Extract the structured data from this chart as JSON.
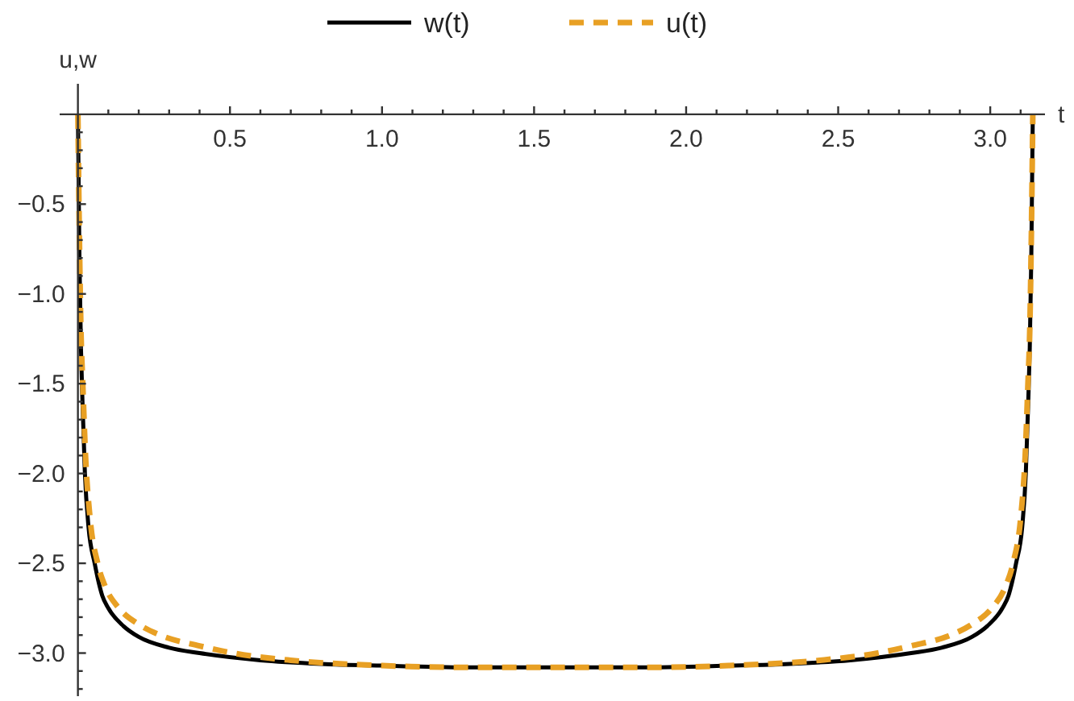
{
  "chart_data": {
    "type": "line",
    "xlabel": "t",
    "ylabel": "u,w",
    "legend": "top",
    "xlim": [
      -0.06,
      3.18
    ],
    "ylim": [
      -3.24,
      0.17
    ],
    "xticks": [
      {
        "value": 0.1,
        "label": null
      },
      {
        "value": 0.2,
        "label": null
      },
      {
        "value": 0.3,
        "label": null
      },
      {
        "value": 0.4,
        "label": null
      },
      0.5,
      {
        "value": 0.6,
        "label": null
      },
      {
        "value": 0.7,
        "label": null
      },
      {
        "value": 0.8,
        "label": null
      },
      {
        "value": 0.9,
        "label": null
      },
      {
        "value": 1,
        "label": "1.0"
      },
      {
        "value": 1.1,
        "label": null
      },
      {
        "value": 1.2,
        "label": null
      },
      {
        "value": 1.3,
        "label": null
      },
      {
        "value": 1.4,
        "label": null
      },
      1.5,
      {
        "value": 1.6,
        "label": null
      },
      {
        "value": 1.7,
        "label": null
      },
      {
        "value": 1.8,
        "label": null
      },
      {
        "value": 1.9,
        "label": null
      },
      {
        "value": 2,
        "label": "2.0"
      },
      {
        "value": 2.1,
        "label": null
      },
      {
        "value": 2.2,
        "label": null
      },
      {
        "value": 2.3,
        "label": null
      },
      {
        "value": 2.4,
        "label": null
      },
      2.5,
      {
        "value": 2.6,
        "label": null
      },
      {
        "value": 2.7,
        "label": null
      },
      {
        "value": 2.8,
        "label": null
      },
      {
        "value": 2.9,
        "label": null
      },
      {
        "value": 3,
        "label": "3.0"
      },
      {
        "value": 3.1,
        "label": null
      }
    ],
    "yticks": [
      {
        "value": -0.1,
        "label": null
      },
      {
        "value": -0.2,
        "label": null
      },
      {
        "value": -0.3,
        "label": null
      },
      {
        "value": -0.4,
        "label": null
      },
      {
        "value": -0.5,
        "label": "−0.5"
      },
      {
        "value": -0.6,
        "label": null
      },
      {
        "value": -0.7,
        "label": null
      },
      {
        "value": -0.8,
        "label": null
      },
      {
        "value": -0.9,
        "label": null
      },
      {
        "value": -1,
        "label": "−1.0"
      },
      {
        "value": -1.1,
        "label": null
      },
      {
        "value": -1.2,
        "label": null
      },
      {
        "value": -1.3,
        "label": null
      },
      {
        "value": -1.4,
        "label": null
      },
      {
        "value": -1.5,
        "label": "−1.5"
      },
      {
        "value": -1.6,
        "label": null
      },
      {
        "value": -1.7,
        "label": null
      },
      {
        "value": -1.8,
        "label": null
      },
      {
        "value": -1.9,
        "label": null
      },
      {
        "value": -2,
        "label": "−2.0"
      },
      {
        "value": -2.1,
        "label": null
      },
      {
        "value": -2.2,
        "label": null
      },
      {
        "value": -2.3,
        "label": null
      },
      {
        "value": -2.4,
        "label": null
      },
      {
        "value": -2.5,
        "label": "−2.5"
      },
      {
        "value": -2.6,
        "label": null
      },
      {
        "value": -2.7,
        "label": null
      },
      {
        "value": -2.8,
        "label": null
      },
      {
        "value": -2.9,
        "label": null
      },
      {
        "value": -3,
        "label": "−3.0"
      },
      {
        "value": -3.1,
        "label": null
      },
      {
        "value": -3.2,
        "label": null
      }
    ],
    "series": [
      {
        "name": "w(t)",
        "color": "#000000",
        "line_style": "solid",
        "x": [
          0,
          0.005,
          0.01,
          0.015,
          0.023,
          0.035,
          0.055,
          0.08,
          0.1,
          0.15,
          0.2,
          0.3,
          0.4,
          0.6,
          0.8,
          1.0,
          1.3,
          1.57,
          1.84,
          2.14,
          2.34,
          2.54,
          2.74,
          2.84,
          2.94,
          2.99,
          3.04,
          3.06,
          3.085,
          3.105,
          3.117,
          3.125,
          3.13,
          3.135,
          3.14
        ],
        "values": [
          0,
          -0.8,
          -1.3,
          -1.6,
          -2.0,
          -2.3,
          -2.5,
          -2.68,
          -2.75,
          -2.85,
          -2.91,
          -2.97,
          -3.0,
          -3.04,
          -3.06,
          -3.07,
          -3.08,
          -3.08,
          -3.08,
          -3.07,
          -3.06,
          -3.04,
          -3.0,
          -2.97,
          -2.91,
          -2.85,
          -2.75,
          -2.68,
          -2.5,
          -2.3,
          -2.0,
          -1.6,
          -1.3,
          -0.8,
          0
        ]
      },
      {
        "name": "u(t)",
        "color": "#e8a024",
        "line_style": "dashed",
        "x": [
          0,
          0.005,
          0.01,
          0.016,
          0.025,
          0.04,
          0.065,
          0.09,
          0.135,
          0.2,
          0.27,
          0.4,
          0.51,
          0.7,
          1.0,
          1.3,
          1.57,
          1.84,
          2.14,
          2.44,
          2.63,
          2.74,
          2.87,
          2.94,
          3.005,
          3.05,
          3.075,
          3.1,
          3.115,
          3.124,
          3.13,
          3.135,
          3.14
        ],
        "values": [
          0,
          -0.7,
          -1.2,
          -1.5,
          -1.9,
          -2.25,
          -2.5,
          -2.63,
          -2.75,
          -2.84,
          -2.9,
          -2.96,
          -3.0,
          -3.04,
          -3.07,
          -3.08,
          -3.08,
          -3.08,
          -3.07,
          -3.04,
          -3.0,
          -2.96,
          -2.9,
          -2.84,
          -2.75,
          -2.63,
          -2.5,
          -2.25,
          -1.9,
          -1.5,
          -1.2,
          -0.7,
          0
        ]
      }
    ]
  }
}
